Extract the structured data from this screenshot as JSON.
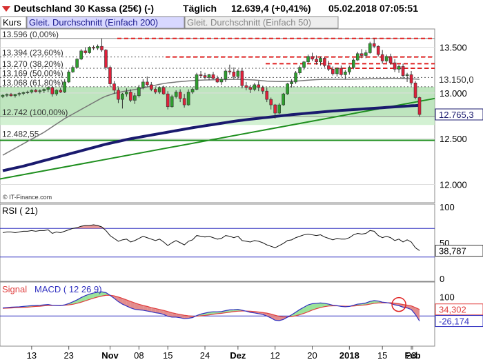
{
  "header": {
    "title": "Deutschland 30 Kassa (25€) (-)",
    "period": "Täglich",
    "price": "12.639,4 (+0,41%)",
    "timestamp": "05.02.2018 07:05:51",
    "icon": "triangle-down-icon"
  },
  "legend": {
    "items": [
      "Kurs",
      "Gleit. Durchschnitt (Einfach 200)",
      "Gleit. Durchschnitt (Einfach 50)"
    ]
  },
  "watermark": "© IT-Finance.com",
  "colors": {
    "up": "#2e9e2e",
    "down": "#e0203a",
    "ma200": "#1a1a6e",
    "ma50": "#777777",
    "fib": "#e02020",
    "trend": "#1f8f1f",
    "rsi_band": "#3030c0",
    "macd": "#3030c0",
    "signal": "#e04040",
    "pos_fill": "#8fe08f",
    "neg_fill": "#e08080"
  },
  "chart_data": [
    {
      "type": "candlestick",
      "title": "Deutschland 30 Kassa (25€) (-)",
      "ylim": [
        11800,
        13700
      ],
      "y_ticks": [
        "13.500",
        "13.000",
        "12.500",
        "12.000"
      ],
      "y_tick_values": [
        13500,
        13000,
        12500,
        12000
      ],
      "last_price_label": "12.765,3",
      "last_price": 12765.3,
      "ma50_label": "13.150,0",
      "ma50_value": 13150,
      "fib_levels": [
        {
          "label": "13.596 (0,00%)",
          "value": 13596
        },
        {
          "label": "13.394 (23,60%)",
          "value": 13394
        },
        {
          "label": "13.270 (38,20%)",
          "value": 13270
        },
        {
          "label": "13.169 (50,00%)",
          "value": 13169
        },
        {
          "label": "13.068 (61,80%)",
          "value": 13068
        },
        {
          "label": "12.742 (100,00%)",
          "value": 12742
        }
      ],
      "support_label": "12.482,55",
      "support_value": 12482.55,
      "x_ticks": [
        "13",
        "23",
        "Nov",
        "08",
        "15",
        "24",
        "Dez",
        "12",
        "20",
        "2018",
        "15",
        "23",
        "Feb"
      ],
      "candles": [
        [
          12960,
          12985,
          12945,
          12975
        ],
        [
          12975,
          12995,
          12955,
          12985
        ],
        [
          12985,
          13000,
          12960,
          12970
        ],
        [
          12970,
          12990,
          12950,
          12985
        ],
        [
          12985,
          13010,
          12965,
          12995
        ],
        [
          12995,
          13015,
          12975,
          13005
        ],
        [
          13005,
          13025,
          12990,
          13010
        ],
        [
          13010,
          13040,
          12995,
          13030
        ],
        [
          13030,
          13045,
          13005,
          13015
        ],
        [
          13015,
          13040,
          12995,
          13025
        ],
        [
          13025,
          13050,
          13000,
          13040
        ],
        [
          13040,
          13070,
          13010,
          13060
        ],
        [
          13060,
          13080,
          12960,
          12990
        ],
        [
          12990,
          13040,
          12970,
          13030
        ],
        [
          13030,
          13055,
          13000,
          13010
        ],
        [
          13010,
          13150,
          13000,
          13120
        ],
        [
          13120,
          13250,
          13110,
          13230
        ],
        [
          13230,
          13300,
          13220,
          13280
        ],
        [
          13280,
          13380,
          13270,
          13370
        ],
        [
          13370,
          13480,
          13360,
          13460
        ],
        [
          13460,
          13500,
          13420,
          13440
        ],
        [
          13440,
          13510,
          13430,
          13500
        ],
        [
          13500,
          13520,
          13470,
          13490
        ],
        [
          13490,
          13530,
          13470,
          13510
        ],
        [
          13510,
          13596,
          13450,
          13470
        ],
        [
          13470,
          13480,
          13250,
          13280
        ],
        [
          13280,
          13300,
          13070,
          13100
        ],
        [
          13100,
          13130,
          12990,
          13030
        ],
        [
          13030,
          13060,
          12890,
          12930
        ],
        [
          12930,
          13000,
          12830,
          12990
        ],
        [
          12990,
          13050,
          12960,
          13010
        ],
        [
          13010,
          13040,
          12900,
          12920
        ],
        [
          12920,
          13000,
          12880,
          12970
        ],
        [
          12970,
          13090,
          12950,
          13060
        ],
        [
          13060,
          13150,
          13040,
          13120
        ],
        [
          13120,
          13180,
          13070,
          13090
        ],
        [
          13090,
          13120,
          13020,
          13040
        ],
        [
          13040,
          13060,
          12990,
          13010
        ],
        [
          13010,
          13070,
          12990,
          13060
        ],
        [
          13060,
          13080,
          12980,
          12990
        ],
        [
          12990,
          13020,
          12820,
          12850
        ],
        [
          12850,
          12980,
          12840,
          12960
        ],
        [
          12960,
          13030,
          12940,
          13010
        ],
        [
          13010,
          13040,
          12900,
          12940
        ],
        [
          12940,
          12990,
          12840,
          12870
        ],
        [
          12870,
          13040,
          12860,
          13010
        ],
        [
          13010,
          13060,
          12990,
          13040
        ],
        [
          13040,
          13220,
          13030,
          13200
        ],
        [
          13200,
          13240,
          13170,
          13190
        ],
        [
          13190,
          13220,
          13150,
          13170
        ],
        [
          13170,
          13210,
          13140,
          13200
        ],
        [
          13200,
          13230,
          13150,
          13160
        ],
        [
          13160,
          13190,
          13110,
          13120
        ],
        [
          13120,
          13170,
          13090,
          13150
        ],
        [
          13150,
          13260,
          13120,
          13240
        ],
        [
          13240,
          13310,
          13200,
          13230
        ],
        [
          13230,
          13280,
          13150,
          13180
        ],
        [
          13180,
          13260,
          13150,
          13240
        ],
        [
          13240,
          13270,
          13050,
          13080
        ],
        [
          13080,
          13120,
          13030,
          13060
        ],
        [
          13060,
          13090,
          13000,
          13040
        ],
        [
          13040,
          13110,
          13020,
          13090
        ],
        [
          13090,
          13130,
          13020,
          13060
        ],
        [
          13060,
          13080,
          12990,
          13020
        ],
        [
          13020,
          13060,
          12900,
          12930
        ],
        [
          12930,
          12950,
          12820,
          12870
        ],
        [
          12870,
          12880,
          12720,
          12780
        ],
        [
          12780,
          12890,
          12770,
          12870
        ],
        [
          12870,
          13000,
          12860,
          12990
        ],
        [
          12990,
          13110,
          12980,
          13100
        ],
        [
          13100,
          13150,
          13060,
          13120
        ],
        [
          13120,
          13240,
          13100,
          13220
        ],
        [
          13220,
          13300,
          13200,
          13280
        ],
        [
          13280,
          13350,
          13250,
          13340
        ],
        [
          13340,
          13420,
          13320,
          13400
        ],
        [
          13400,
          13440,
          13350,
          13370
        ],
        [
          13370,
          13410,
          13310,
          13340
        ],
        [
          13340,
          13400,
          13300,
          13380
        ],
        [
          13380,
          13390,
          13280,
          13300
        ],
        [
          13300,
          13350,
          13240,
          13260
        ],
        [
          13260,
          13290,
          13190,
          13210
        ],
        [
          13210,
          13280,
          13180,
          13270
        ],
        [
          13270,
          13300,
          13180,
          13200
        ],
        [
          13200,
          13250,
          13150,
          13230
        ],
        [
          13230,
          13300,
          13200,
          13280
        ],
        [
          13280,
          13380,
          13260,
          13360
        ],
        [
          13360,
          13450,
          13350,
          13430
        ],
        [
          13430,
          13480,
          13380,
          13410
        ],
        [
          13410,
          13470,
          13380,
          13440
        ],
        [
          13440,
          13560,
          13430,
          13540
        ],
        [
          13540,
          13596,
          13490,
          13510
        ],
        [
          13510,
          13520,
          13400,
          13420
        ],
        [
          13420,
          13470,
          13320,
          13350
        ],
        [
          13350,
          13420,
          13330,
          13400
        ],
        [
          13400,
          13430,
          13310,
          13330
        ],
        [
          13330,
          13370,
          13230,
          13260
        ],
        [
          13260,
          13310,
          13220,
          13290
        ],
        [
          13290,
          13320,
          13160,
          13190
        ],
        [
          13190,
          13220,
          13120,
          13200
        ],
        [
          13200,
          13240,
          13080,
          13110
        ],
        [
          13110,
          13130,
          12930,
          12950
        ],
        [
          12950,
          12960,
          12740,
          12765
        ]
      ],
      "ma200": [
        12150,
        12160,
        12170,
        12180,
        12190,
        12200,
        12212,
        12224,
        12236,
        12248,
        12260,
        12272,
        12284,
        12296,
        12308,
        12320,
        12332,
        12344,
        12356,
        12368,
        12380,
        12392,
        12404,
        12416,
        12428,
        12440,
        12450,
        12460,
        12470,
        12480,
        12490,
        12500,
        12508,
        12516,
        12524,
        12532,
        12540,
        12548,
        12556,
        12564,
        12572,
        12580,
        12588,
        12596,
        12604,
        12612,
        12620,
        12627,
        12634,
        12641,
        12648,
        12655,
        12662,
        12669,
        12676,
        12683,
        12690,
        12696,
        12702,
        12708,
        12713,
        12718,
        12723,
        12728,
        12733,
        12738,
        12743,
        12748,
        12753,
        12758,
        12763,
        12767,
        12771,
        12775,
        12779,
        12783,
        12787,
        12791,
        12795,
        12799,
        12803,
        12806,
        12809,
        12812,
        12815,
        12818,
        12821,
        12824,
        12827,
        12830,
        12833,
        12836,
        12839,
        12842,
        12845,
        12848,
        12851,
        12854,
        12857,
        12860,
        12862,
        12865
      ],
      "ma50": [
        12320,
        12345,
        12370,
        12395,
        12420,
        12445,
        12470,
        12495,
        12520,
        12545,
        12570,
        12600,
        12630,
        12660,
        12690,
        12720,
        12745,
        12770,
        12795,
        12820,
        12845,
        12870,
        12895,
        12920,
        12945,
        12965,
        12980,
        12995,
        13005,
        13015,
        13022,
        13030,
        13038,
        13046,
        13055,
        13065,
        13075,
        13085,
        13095,
        13103,
        13110,
        13115,
        13120,
        13124,
        13128,
        13132,
        13135,
        13138,
        13140,
        13142,
        13143,
        13144,
        13145,
        13146,
        13147,
        13148,
        13149,
        13150,
        13148,
        13146,
        13144,
        13142,
        13138,
        13134,
        13130,
        13128,
        13126,
        13125,
        13125,
        13126,
        13128,
        13130,
        13133,
        13136,
        13140,
        13143,
        13146,
        13148,
        13150,
        13150,
        13150,
        13150,
        13150,
        13150,
        13150,
        13151,
        13152,
        13153,
        13154,
        13155,
        13156,
        13157,
        13158,
        13159,
        13160,
        13160,
        13159,
        13158,
        13156,
        13154,
        13152,
        13150
      ]
    },
    {
      "type": "line",
      "title": "RSI ( 21)",
      "ylim": [
        0,
        100
      ],
      "y_ticks": [
        "100",
        "50",
        "0"
      ],
      "y_tick_values": [
        100,
        50,
        0
      ],
      "bands": [
        70,
        30
      ],
      "last_label": "38,787",
      "last_value": 38.787,
      "values": [
        64,
        65,
        65,
        64,
        65,
        66,
        66,
        67,
        66,
        67,
        67,
        68,
        63,
        65,
        64,
        66,
        68,
        70,
        71,
        73,
        74,
        74,
        75,
        74,
        72,
        67,
        60,
        56,
        52,
        54,
        55,
        51,
        53,
        56,
        59,
        57,
        55,
        53,
        55,
        51,
        46,
        50,
        53,
        50,
        47,
        52,
        54,
        60,
        59,
        58,
        59,
        57,
        55,
        56,
        60,
        59,
        57,
        59,
        53,
        52,
        51,
        53,
        52,
        50,
        47,
        45,
        43,
        46,
        49,
        53,
        54,
        57,
        59,
        61,
        62,
        61,
        60,
        61,
        58,
        56,
        54,
        56,
        55,
        55,
        57,
        61,
        63,
        62,
        63,
        67,
        66,
        60,
        57,
        59,
        57,
        53,
        55,
        51,
        54,
        51,
        43,
        39
      ]
    },
    {
      "type": "line",
      "title": "MACD ( 12 26 9)",
      "signal_label": "Signal",
      "y_ticks": [
        "100"
      ],
      "y_tick_values": [
        100
      ],
      "ylim": [
        -150,
        170
      ],
      "last_signal_label": "34,302",
      "last_signal": 34.302,
      "last_macd_label": "-26,174",
      "last_macd": -26.174,
      "macd": [
        42,
        44,
        46,
        47,
        48,
        50,
        52,
        54,
        55,
        56,
        58,
        60,
        56,
        55,
        54,
        58,
        65,
        74,
        84,
        96,
        106,
        114,
        120,
        124,
        126,
        122,
        108,
        92,
        75,
        62,
        52,
        42,
        35,
        32,
        30,
        26,
        22,
        17,
        14,
        8,
        -2,
        -6,
        -6,
        -9,
        -14,
        -12,
        -8,
        2,
        10,
        15,
        20,
        22,
        22,
        23,
        28,
        32,
        33,
        35,
        30,
        25,
        19,
        16,
        12,
        8,
        0,
        -10,
        -22,
        -24,
        -18,
        -6,
        6,
        20,
        34,
        46,
        58,
        64,
        66,
        68,
        66,
        62,
        56,
        54,
        50,
        48,
        50,
        56,
        62,
        64,
        68,
        76,
        80,
        78,
        72,
        70,
        66,
        58,
        54,
        46,
        42,
        34,
        8,
        -26
      ],
      "signal": [
        40,
        41,
        42,
        43,
        44,
        45,
        46,
        48,
        50,
        51,
        53,
        55,
        55,
        55,
        55,
        56,
        58,
        61,
        66,
        72,
        79,
        86,
        93,
        99,
        104,
        108,
        108,
        105,
        99,
        92,
        84,
        76,
        68,
        61,
        55,
        50,
        44,
        39,
        34,
        29,
        23,
        17,
        12,
        8,
        4,
        1,
        -1,
        -1,
        1,
        3,
        6,
        9,
        12,
        14,
        17,
        20,
        23,
        25,
        26,
        26,
        25,
        23,
        21,
        18,
        15,
        10,
        4,
        -2,
        -5,
        -5,
        -3,
        1,
        7,
        14,
        22,
        31,
        38,
        44,
        49,
        52,
        53,
        53,
        52,
        51,
        51,
        52,
        54,
        56,
        58,
        62,
        66,
        68,
        69,
        69,
        69,
        67,
        64,
        60,
        57,
        53,
        44,
        34
      ]
    }
  ]
}
